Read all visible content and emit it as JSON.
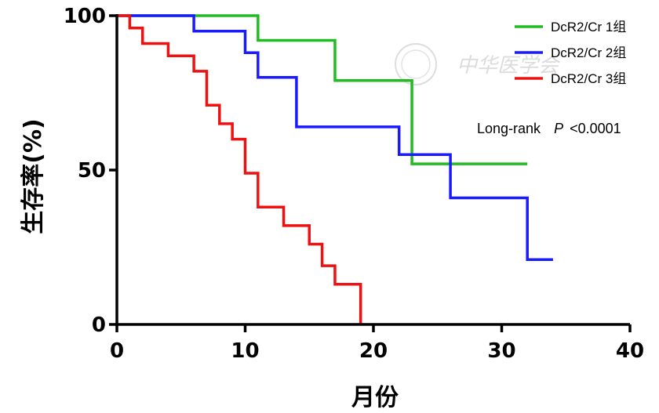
{
  "chart_data": {
    "type": "line",
    "subtype": "kaplan-meier-step",
    "ylabel": "生存率(%)",
    "xlabel": "月份",
    "xlim": [
      0,
      40
    ],
    "ylim": [
      0,
      100
    ],
    "xticks": [
      0,
      10,
      20,
      30,
      40
    ],
    "yticks": [
      0,
      50,
      100
    ],
    "legend_position": "top-right",
    "grid": false,
    "series": [
      {
        "name": "DcR2/Cr 1组",
        "color": "#22bb22",
        "steps": [
          [
            0,
            100
          ],
          [
            11,
            92
          ],
          [
            17,
            79
          ],
          [
            23,
            52
          ],
          [
            32,
            52
          ]
        ]
      },
      {
        "name": "DcR2/Cr 2组",
        "color": "#1a1aff",
        "steps": [
          [
            0,
            100
          ],
          [
            6,
            95
          ],
          [
            10,
            88
          ],
          [
            11,
            80
          ],
          [
            14,
            64
          ],
          [
            22,
            55
          ],
          [
            26,
            41
          ],
          [
            32,
            21
          ],
          [
            34,
            21
          ]
        ]
      },
      {
        "name": "DcR2/Cr 3组",
        "color": "#ee1111",
        "steps": [
          [
            0,
            100
          ],
          [
            1,
            96
          ],
          [
            2,
            91
          ],
          [
            4,
            87
          ],
          [
            6,
            82
          ],
          [
            7,
            71
          ],
          [
            8,
            65
          ],
          [
            9,
            60
          ],
          [
            10,
            49
          ],
          [
            11,
            38
          ],
          [
            13,
            32
          ],
          [
            15,
            26
          ],
          [
            16,
            19
          ],
          [
            17,
            13
          ],
          [
            19,
            0
          ]
        ]
      }
    ],
    "annotation": {
      "prefix": "Long-rank",
      "p_symbol": "P",
      "value": "<0.0001"
    }
  },
  "watermark": {
    "text": "中华医学会"
  }
}
